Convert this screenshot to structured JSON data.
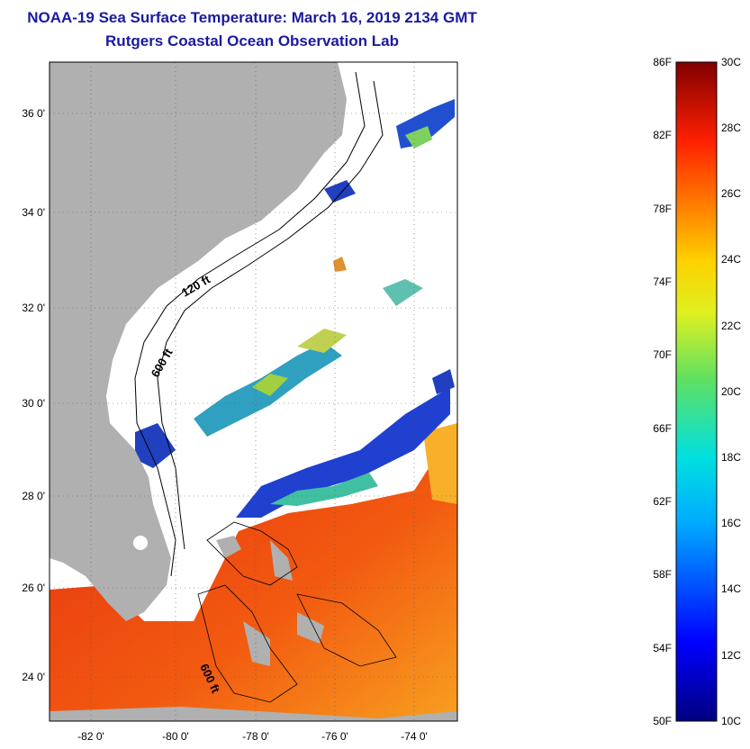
{
  "title_line1": "NOAA-19 Sea Surface Temperature:  March 16, 2019 2134 GMT",
  "title_line2": "Rutgers Coastal Ocean Observation Lab",
  "map": {
    "lat_labels": [
      "36 0'",
      "34 0'",
      "32 0'",
      "30 0'",
      "28 0'",
      "26 0'",
      "24 0'"
    ],
    "lon_labels": [
      "-82 0'",
      "-80 0'",
      "-78 0'",
      "-76 0'",
      "-74 0'"
    ],
    "contour_labels": [
      "120 ft",
      "600 ft",
      "600 ft"
    ]
  },
  "colorbar": {
    "f_labels": [
      "86F",
      "82F",
      "78F",
      "74F",
      "70F",
      "66F",
      "62F",
      "58F",
      "54F",
      "50F"
    ],
    "c_labels": [
      "30C",
      "28C",
      "26C",
      "24C",
      "22C",
      "20C",
      "18C",
      "16C",
      "14C",
      "12C",
      "10C"
    ]
  },
  "colors": {
    "title": "#1a1aa0",
    "land": "#b0b0b0",
    "ocean_warm": "#f03c10",
    "ocean_cool": "#1030c0"
  }
}
